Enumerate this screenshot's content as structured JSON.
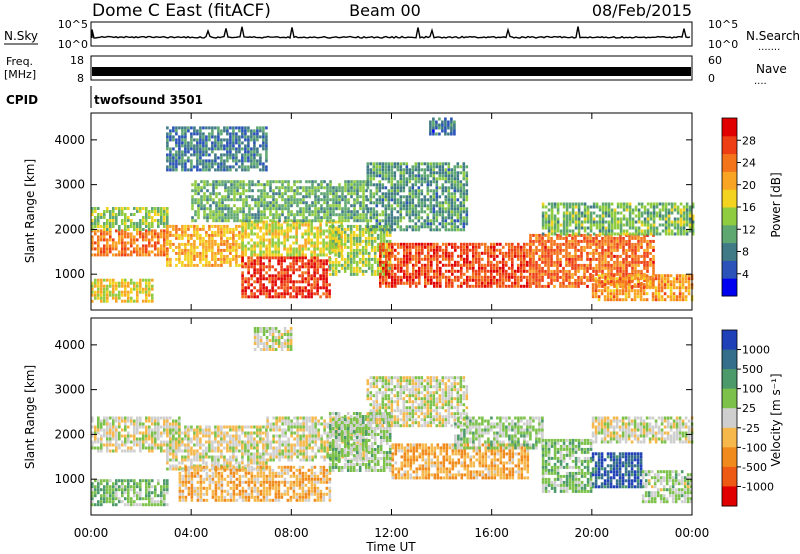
{
  "header": {
    "title": "Dome C East (fitACF)",
    "beam": "Beam 00",
    "date": "08/Feb/2015"
  },
  "nsky_panel": {
    "left_label": "N.Sky",
    "left_ticks": [
      "10^5",
      "10^0"
    ],
    "right_ticks": [
      "10^5",
      "10^0"
    ],
    "right_label": "N.Search",
    "right_dots": "......."
  },
  "freq_panel": {
    "left_label_top": "Freq.",
    "left_label_bottom": "[MHz]",
    "left_ticks": [
      "18",
      "8"
    ],
    "right_ticks": [
      "60",
      "0"
    ],
    "right_label": "Nave",
    "right_dots": "...."
  },
  "cpid_panel": {
    "label": "CPID",
    "value": "twofsound 3501"
  },
  "chart_data": [
    {
      "type": "heatmap",
      "ylabel": "Slant Range [km]",
      "xlabel": "",
      "x_ticks": [
        "00:00",
        "04:00",
        "08:00",
        "12:00",
        "16:00",
        "20:00",
        "00:00"
      ],
      "y_ticks": [
        "1000",
        "2000",
        "3000",
        "4000"
      ],
      "ylim": [
        200,
        4600
      ],
      "xlim_hours": [
        0,
        24
      ],
      "colorbar": {
        "label": "Power [dB]",
        "ticks": [
          "4",
          "8",
          "12",
          "16",
          "20",
          "24",
          "28"
        ],
        "range": [
          0,
          32
        ],
        "colors": [
          "#0000f0",
          "#2a52b8",
          "#3f7a86",
          "#5ea770",
          "#8fcc40",
          "#f3d31f",
          "#f9a422",
          "#f4741c",
          "#ee3f14",
          "#e00000"
        ]
      },
      "regions": [
        {
          "t0": 0.0,
          "t1": 3.0,
          "r0": 1400,
          "r1": 2000,
          "value": 24
        },
        {
          "t0": 0.0,
          "t1": 3.0,
          "r0": 2000,
          "r1": 2500,
          "value": 14
        },
        {
          "t0": 0.0,
          "t1": 2.5,
          "r0": 400,
          "r1": 900,
          "value": 18
        },
        {
          "t0": 3.0,
          "t1": 6.0,
          "r0": 1200,
          "r1": 2100,
          "value": 20
        },
        {
          "t0": 6.0,
          "t1": 9.5,
          "r0": 500,
          "r1": 1400,
          "value": 28
        },
        {
          "t0": 6.0,
          "t1": 10.0,
          "r0": 1400,
          "r1": 2200,
          "value": 17
        },
        {
          "t0": 4.0,
          "t1": 11.0,
          "r0": 2200,
          "r1": 3100,
          "value": 12
        },
        {
          "t0": 9.5,
          "t1": 12.0,
          "r0": 1000,
          "r1": 2100,
          "value": 15
        },
        {
          "t0": 11.0,
          "t1": 15.0,
          "r0": 2000,
          "r1": 3500,
          "value": 10
        },
        {
          "t0": 11.5,
          "t1": 17.5,
          "r0": 700,
          "r1": 1700,
          "value": 27
        },
        {
          "t0": 17.5,
          "t1": 22.5,
          "r0": 700,
          "r1": 1900,
          "value": 25
        },
        {
          "t0": 18.0,
          "t1": 24.0,
          "r0": 1900,
          "r1": 2600,
          "value": 13
        },
        {
          "t0": 20.0,
          "t1": 24.0,
          "r0": 400,
          "r1": 1000,
          "value": 22
        },
        {
          "t0": 3.0,
          "t1": 7.0,
          "r0": 3300,
          "r1": 4300,
          "value": 8
        },
        {
          "t0": 13.5,
          "t1": 14.5,
          "r0": 4100,
          "r1": 4500,
          "value": 7
        }
      ]
    },
    {
      "type": "heatmap",
      "ylabel": "Slant Range [km]",
      "xlabel": "Time UT",
      "x_ticks": [
        "00:00",
        "04:00",
        "08:00",
        "12:00",
        "16:00",
        "20:00",
        "00:00"
      ],
      "y_ticks": [
        "1000",
        "2000",
        "3000",
        "4000"
      ],
      "ylim": [
        200,
        4600
      ],
      "xlim_hours": [
        0,
        24
      ],
      "colorbar": {
        "label": "Velocity [m s⁻¹]",
        "ticks": [
          "1000",
          "500",
          "100",
          "25",
          "-25",
          "-100",
          "-500",
          "-1000"
        ],
        "range": [
          -1200,
          1200
        ],
        "colors": [
          "#2040b8",
          "#356e8a",
          "#4c9a6a",
          "#7cc24a",
          "#cfcfcf",
          "#f6b84a",
          "#f18a1c",
          "#ee5a14",
          "#e00000"
        ]
      },
      "regions": [
        {
          "t0": 0.0,
          "t1": 3.0,
          "r0": 400,
          "r1": 1000,
          "value": 300
        },
        {
          "t0": 0.0,
          "t1": 3.5,
          "r0": 1600,
          "r1": 2400,
          "value": 0
        },
        {
          "t0": 3.0,
          "t1": 7.0,
          "r0": 1200,
          "r1": 2200,
          "value": -50
        },
        {
          "t0": 3.5,
          "t1": 9.5,
          "r0": 500,
          "r1": 1300,
          "value": -300
        },
        {
          "t0": 7.0,
          "t1": 11.0,
          "r0": 1400,
          "r1": 2400,
          "value": 0
        },
        {
          "t0": 9.5,
          "t1": 12.0,
          "r0": 1200,
          "r1": 2500,
          "value": 200
        },
        {
          "t0": 11.0,
          "t1": 15.0,
          "r0": 2200,
          "r1": 3300,
          "value": 0
        },
        {
          "t0": 12.0,
          "t1": 17.5,
          "r0": 1000,
          "r1": 1800,
          "value": -350
        },
        {
          "t0": 14.5,
          "t1": 18.0,
          "r0": 1700,
          "r1": 2400,
          "value": 200
        },
        {
          "t0": 18.0,
          "t1": 20.0,
          "r0": 700,
          "r1": 1900,
          "value": 300
        },
        {
          "t0": 20.0,
          "t1": 22.0,
          "r0": 800,
          "r1": 1600,
          "value": 900
        },
        {
          "t0": 20.0,
          "t1": 24.0,
          "r0": 1800,
          "r1": 2400,
          "value": 0
        },
        {
          "t0": 22.0,
          "t1": 24.0,
          "r0": 500,
          "r1": 1200,
          "value": 150
        },
        {
          "t0": 6.5,
          "t1": 8.0,
          "r0": 3900,
          "r1": 4400,
          "value": 0
        }
      ]
    }
  ]
}
